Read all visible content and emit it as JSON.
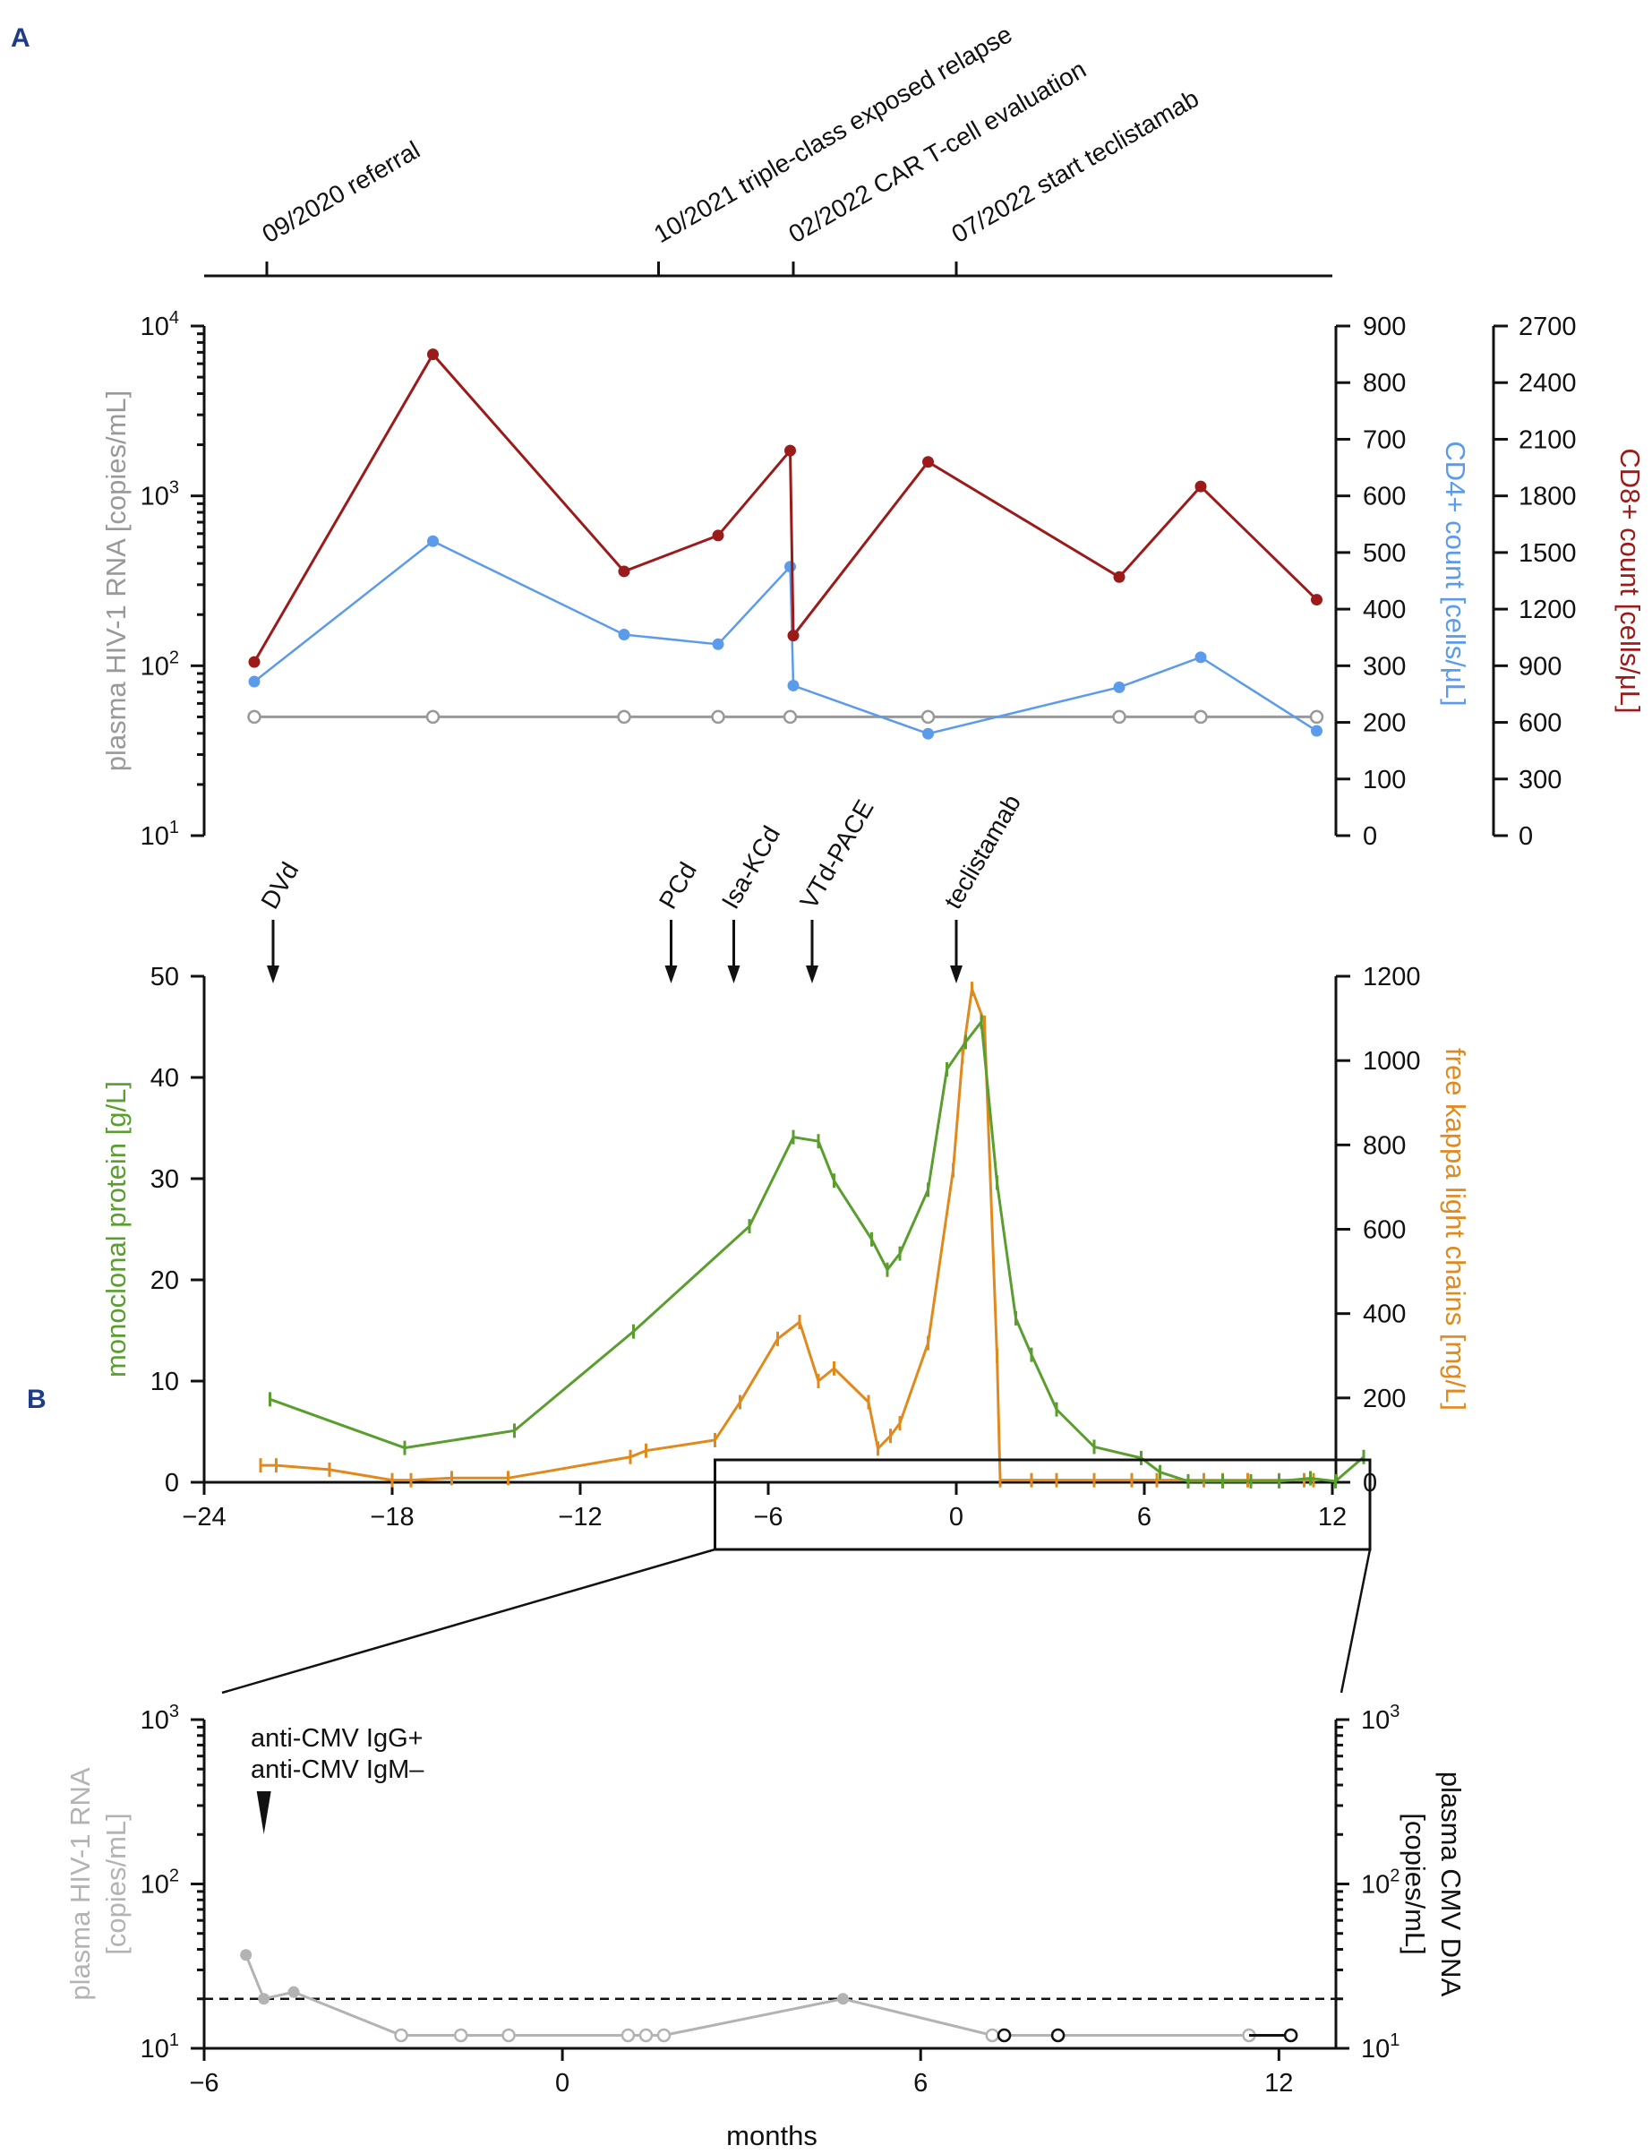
{
  "panel_labels": {
    "a": "A",
    "b": "B"
  },
  "colors": {
    "hiv": "#999999",
    "hiv_b": "#b3b3b3",
    "cd4": "#5b9bea",
    "cd8": "#9b1b1b",
    "mprotein": "#5a9e2f",
    "kappa": "#e08a1e",
    "cmv": "#111111",
    "axis": "#111111"
  },
  "chart_data": [
    {
      "id": "timeline",
      "type": "timeline",
      "events": [
        {
          "month": -22,
          "label": "09/2020 referral"
        },
        {
          "month": -9.5,
          "label": "10/2021 triple-class exposed relapse"
        },
        {
          "month": -5.2,
          "label": "02/2022 CAR T-cell evaluation"
        },
        {
          "month": 0,
          "label": "07/2022 start teclistamab"
        }
      ]
    },
    {
      "id": "lymphocytes",
      "type": "line",
      "xlim": [
        -24,
        13
      ],
      "axes": {
        "left": {
          "label": "plasma HIV-1 RNA [copies/mL]",
          "scale": "log",
          "range": [
            10,
            10000
          ],
          "ticks": [
            "10",
            "10",
            "10",
            "10"
          ],
          "exponents": [
            "1",
            "2",
            "3",
            "4"
          ]
        },
        "right1": {
          "label": "CD4+ count [cells/μL]",
          "range": [
            0,
            900
          ],
          "ticks": [
            "0",
            "100",
            "200",
            "300",
            "400",
            "500",
            "600",
            "700",
            "800",
            "900"
          ]
        },
        "right2": {
          "label": "CD8+ count [cells/μL]",
          "range": [
            0,
            2700
          ],
          "ticks": [
            "0",
            "300",
            "600",
            "900",
            "1200",
            "1500",
            "1800",
            "2100",
            "2400",
            "2700"
          ]
        }
      },
      "series": [
        {
          "name": "plasma HIV-1 RNA",
          "axis": "left",
          "marker": "open-circle",
          "x": [
            -22.4,
            -16.7,
            -10.6,
            -7.6,
            -5.3,
            -0.9,
            5.2,
            7.8,
            11.5
          ],
          "y": [
            50,
            50,
            50,
            50,
            50,
            50,
            50,
            50,
            50
          ]
        },
        {
          "name": "CD4+ count",
          "axis": "right1",
          "marker": "dot",
          "x": [
            -22.4,
            -16.7,
            -10.6,
            -7.6,
            -5.3,
            -5.2,
            -0.9,
            5.2,
            7.8,
            11.5
          ],
          "y": [
            272,
            520,
            355,
            338,
            475,
            265,
            180,
            262,
            315,
            185
          ]
        },
        {
          "name": "CD8+ count",
          "axis": "right2",
          "marker": "dot",
          "x": [
            -22.4,
            -16.7,
            -10.6,
            -7.6,
            -5.3,
            -5.2,
            -0.9,
            5.2,
            7.8,
            11.5
          ],
          "y": [
            920,
            2550,
            1400,
            1590,
            2040,
            1060,
            1980,
            1370,
            1850,
            1250
          ]
        }
      ]
    },
    {
      "id": "paraprotein",
      "type": "line",
      "xlim": [
        -24,
        13
      ],
      "xticks": [
        "−24",
        "−18",
        "−12",
        "−6",
        "0",
        "6",
        "12"
      ],
      "xtick_values": [
        -24,
        -18,
        -12,
        -6,
        0,
        6,
        12
      ],
      "axes": {
        "left": {
          "label": "monoclonal protein [g/L]",
          "range": [
            0,
            50
          ],
          "ticks": [
            "0",
            "10",
            "20",
            "30",
            "40",
            "50"
          ]
        },
        "right": {
          "label": "free kappa light chains [mg/L]",
          "range": [
            0,
            1200
          ],
          "ticks": [
            "0",
            "200",
            "400",
            "600",
            "800",
            "1000",
            "1200"
          ]
        }
      },
      "treatments": [
        {
          "month": -21.8,
          "label": "DVd"
        },
        {
          "month": -9.1,
          "label": "PCd"
        },
        {
          "month": -7.1,
          "label": "Isa-KCd"
        },
        {
          "month": -4.6,
          "label": "VTd-PACE"
        },
        {
          "month": 0,
          "label": "teclistamab"
        }
      ],
      "series": [
        {
          "name": "monoclonal protein",
          "axis": "left",
          "x": [
            -21.9,
            -17.6,
            -14.1,
            -10.3,
            -6.6,
            -5.2,
            -4.4,
            -3.9,
            -2.7,
            -2.2,
            -1.8,
            -0.9,
            -0.3,
            0.3,
            0.8,
            1.3,
            1.9,
            2.4,
            3.2,
            4.4,
            5.9,
            6.5,
            7.4,
            8.5,
            9.4,
            10.3,
            11.3,
            12.1,
            13.0
          ],
          "y": [
            8.2,
            3.4,
            5.1,
            14.9,
            25.3,
            34.1,
            33.7,
            29.8,
            24.0,
            21.0,
            22.6,
            28.9,
            40.8,
            43.5,
            45.5,
            29.6,
            16.2,
            12.6,
            7.2,
            3.5,
            2.4,
            1.0,
            0.1,
            0.1,
            0.1,
            0.1,
            0.4,
            0.1,
            2.5
          ]
        },
        {
          "name": "free kappa light chains",
          "axis": "right",
          "x": [
            -22.2,
            -21.7,
            -20.0,
            -18.0,
            -17.4,
            -16.1,
            -14.3,
            -10.4,
            -9.9,
            -7.7,
            -6.9,
            -5.7,
            -5.0,
            -4.4,
            -3.9,
            -2.8,
            -2.5,
            -2.1,
            -1.8,
            -0.9,
            -0.1,
            0.2,
            0.5,
            0.9,
            1.3,
            1.4,
            2.4,
            3.2,
            4.4,
            5.6,
            6.4,
            7.9,
            8.5,
            9.3,
            10.3,
            11.1,
            11.4
          ],
          "y": [
            40,
            40,
            30,
            5,
            5,
            10,
            10,
            60,
            75,
            100,
            190,
            340,
            380,
            240,
            270,
            190,
            80,
            110,
            140,
            330,
            740,
            1010,
            1170,
            1090,
            300,
            5,
            5,
            5,
            5,
            5,
            5,
            5,
            5,
            5,
            5,
            5,
            5
          ]
        }
      ]
    },
    {
      "id": "cmv",
      "type": "line",
      "xlim": [
        -6,
        13
      ],
      "xlabel": "months",
      "xticks": [
        "−6",
        "0",
        "6",
        "12"
      ],
      "xtick_values": [
        -6,
        0,
        6,
        12
      ],
      "annotation": {
        "x": -5,
        "lines": [
          "anti-CMV IgG+",
          "anti-CMV IgM–"
        ]
      },
      "threshold": 20,
      "axes": {
        "left": {
          "label": "plasma HIV-1 RNA [copies/mL]",
          "label_lines": [
            "plasma HIV-1 RNA",
            "[copies/mL]"
          ],
          "scale": "log",
          "range": [
            10,
            1000
          ],
          "ticks": [
            "10",
            "10",
            "10"
          ],
          "exponents": [
            "1",
            "2",
            "3"
          ]
        },
        "right": {
          "label": "plasma CMV DNA [copies/mL]",
          "label_lines": [
            "plasma CMV DNA",
            "[copies/mL]"
          ],
          "scale": "log",
          "range": [
            10,
            1000
          ],
          "ticks": [
            "10",
            "10",
            "10"
          ],
          "exponents": [
            "1",
            "2",
            "3"
          ]
        }
      },
      "series": [
        {
          "name": "plasma HIV-1 RNA (detected)",
          "axis": "left",
          "marker": "dot",
          "x": [
            -5.3,
            -5.0,
            -4.5,
            4.7
          ],
          "y": [
            37,
            20,
            22,
            20
          ]
        },
        {
          "name": "plasma HIV-1 RNA (<LLOQ)",
          "axis": "left",
          "marker": "open-circle",
          "x": [
            -2.7,
            -1.7,
            -0.9,
            1.1,
            1.4,
            1.7,
            7.2,
            11.5
          ],
          "y": [
            12,
            12,
            12,
            12,
            12,
            12,
            12,
            12
          ]
        },
        {
          "name": "plasma CMV DNA",
          "axis": "right",
          "marker": "open-circle",
          "x": [
            7.4,
            8.3,
            12.2
          ],
          "y": [
            12,
            12,
            12
          ]
        }
      ]
    }
  ]
}
